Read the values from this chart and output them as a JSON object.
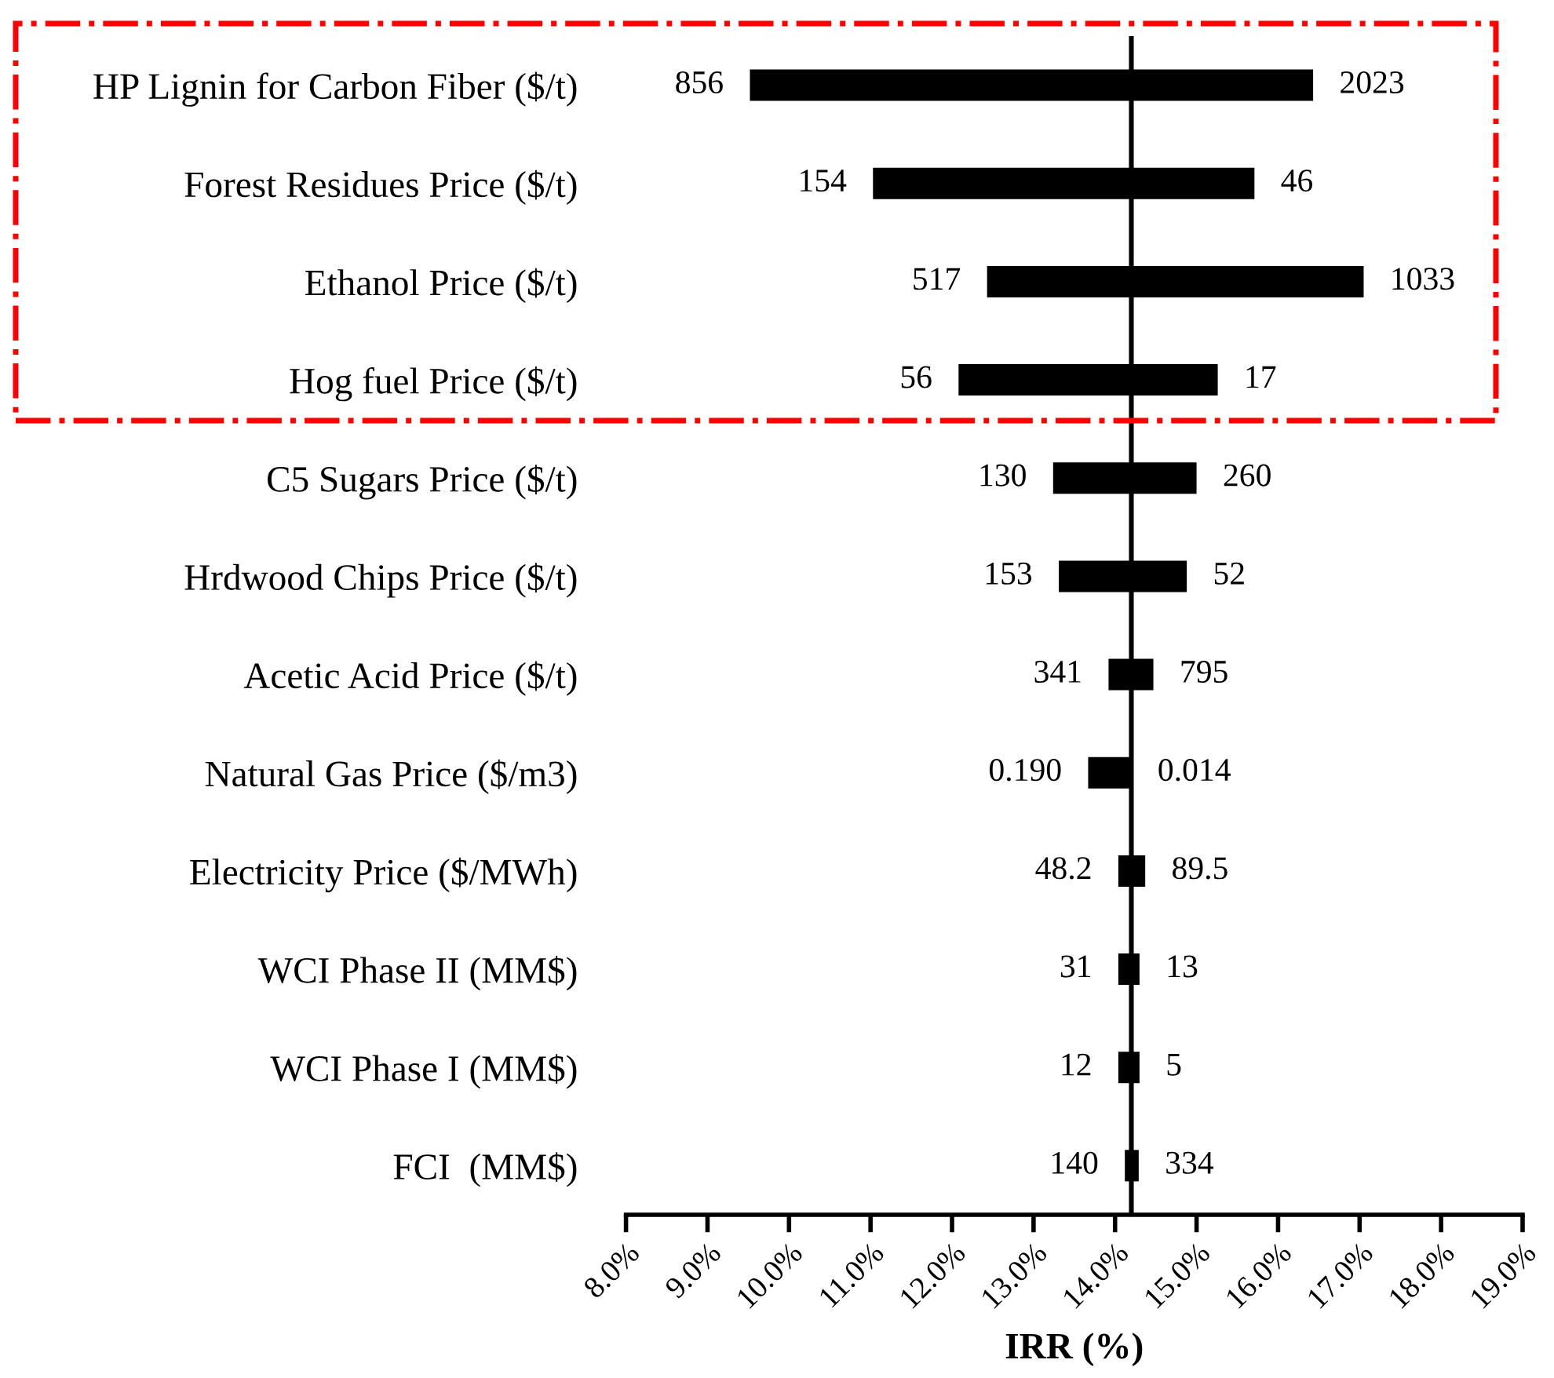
{
  "chart_data": {
    "type": "bar",
    "orientation": "horizontal",
    "xlabel": "IRR (%)",
    "categories": [
      "HP Lignin for Carbon Fiber ($/t)",
      "Forest Residues Price ($/t)",
      "Ethanol Price ($/t)",
      "Hog fuel Price ($/t)",
      "C5 Sugars Price ($/t)",
      "Hrdwood Chips Price ($/t)",
      "Acetic Acid Price ($/t)",
      "Natural Gas Price ($/m3)",
      "Electricity Price ($/MWh)",
      "WCI Phase II (MM$)",
      "WCI Phase I (MM$)",
      "FCI  (MM$)"
    ],
    "series": [
      {
        "color": "#000000",
        "base": [
          9.52,
          11.03,
          12.43,
          12.08,
          13.24,
          13.31,
          13.92,
          13.67,
          14.04,
          14.04,
          14.04,
          14.12
        ],
        "values": [
          6.91,
          4.68,
          4.62,
          3.18,
          1.76,
          1.57,
          0.55,
          0.53,
          0.33,
          0.26,
          0.26,
          0.17
        ]
      }
    ],
    "annotations": [
      {
        "text": "856",
        "x": 9.52,
        "y": "HP Lignin for Carbon Fiber ($/t)"
      },
      {
        "text": "2023",
        "x": 16.43,
        "y": "HP Lignin for Carbon Fiber ($/t)"
      },
      {
        "text": "154",
        "x": 11.03,
        "y": "Forest Residues Price ($/t)"
      },
      {
        "text": "46",
        "x": 15.71,
        "y": "Forest Residues Price ($/t)"
      },
      {
        "text": "517",
        "x": 12.43,
        "y": "Ethanol Price ($/t)"
      },
      {
        "text": "1033",
        "x": 17.05,
        "y": "Ethanol Price ($/t)"
      },
      {
        "text": "56",
        "x": 12.08,
        "y": "Hog fuel Price ($/t)"
      },
      {
        "text": "17",
        "x": 15.26,
        "y": "Hog fuel Price ($/t)"
      },
      {
        "text": "130",
        "x": 13.24,
        "y": "C5 Sugars Price ($/t)"
      },
      {
        "text": "260",
        "x": 15.0,
        "y": "C5 Sugars Price ($/t)"
      },
      {
        "text": "153",
        "x": 13.31,
        "y": "Hrdwood Chips Price ($/t)"
      },
      {
        "text": "52",
        "x": 14.88,
        "y": "Hrdwood Chips Price ($/t)"
      },
      {
        "text": "341",
        "x": 13.92,
        "y": "Acetic Acid Price ($/t)"
      },
      {
        "text": "795",
        "x": 14.47,
        "y": "Acetic Acid Price ($/t)"
      },
      {
        "text": "0.190",
        "x": 13.67,
        "y": "Natural Gas Price ($/m3)"
      },
      {
        "text": "0.014",
        "x": 14.2,
        "y": "Natural Gas Price ($/m3)"
      },
      {
        "text": "48.2",
        "x": 14.04,
        "y": "Electricity Price ($/MWh)"
      },
      {
        "text": "89.5",
        "x": 14.37,
        "y": "Electricity Price ($/MWh)"
      },
      {
        "text": "31",
        "x": 14.04,
        "y": "WCI Phase II (MM$)"
      },
      {
        "text": "13",
        "x": 14.3,
        "y": "WCI Phase II (MM$)"
      },
      {
        "text": "12",
        "x": 14.04,
        "y": "WCI Phase I (MM$)"
      },
      {
        "text": "5",
        "x": 14.3,
        "y": "WCI Phase I (MM$)"
      },
      {
        "text": "140",
        "x": 14.12,
        "y": "FCI  (MM$)"
      },
      {
        "text": "334",
        "x": 14.29,
        "y": "FCI  (MM$)"
      }
    ],
    "xlim": [
      8,
      19
    ],
    "xticks": [
      {
        "value": 8,
        "label": "8.0%"
      },
      {
        "value": 9,
        "label": "9.0%"
      },
      {
        "value": 10,
        "label": "10.0%"
      },
      {
        "value": 11,
        "label": "11.0%"
      },
      {
        "value": 12,
        "label": "12.0%"
      },
      {
        "value": 13,
        "label": "13.0%"
      },
      {
        "value": 14,
        "label": "14.0%"
      },
      {
        "value": 15,
        "label": "15.0%"
      },
      {
        "value": 16,
        "label": "16.0%"
      },
      {
        "value": 17,
        "label": "17.0%"
      },
      {
        "value": 18,
        "label": "18.0%"
      },
      {
        "value": 19,
        "label": "19.0%"
      }
    ],
    "ref_lines": [
      {
        "axis": "x",
        "value": 14.2,
        "color": "#000000"
      }
    ],
    "grid": false,
    "legend": false
  }
}
